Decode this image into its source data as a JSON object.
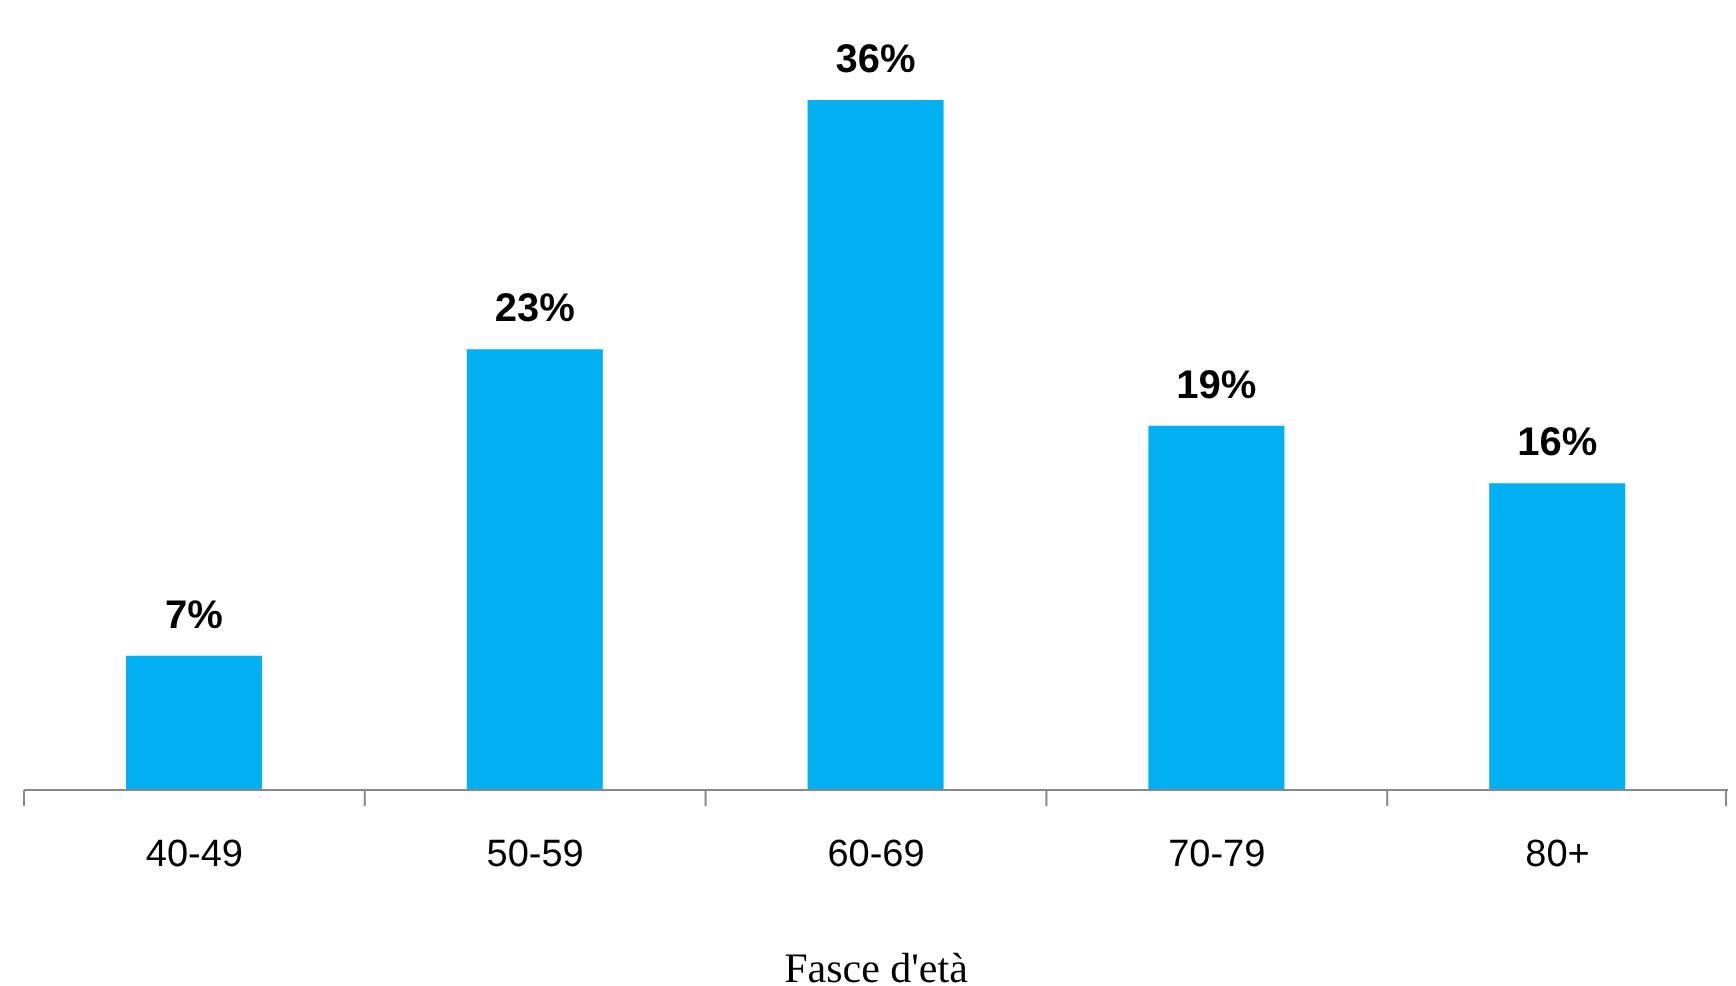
{
  "chart_data": {
    "type": "bar",
    "xlabel": "Fasce d'età",
    "categories": [
      "40-49",
      "50-59",
      "60-69",
      "70-79",
      "80+"
    ],
    "values": [
      7,
      23,
      36,
      19,
      16
    ],
    "value_labels": [
      "7%",
      "23%",
      "36%",
      "19%",
      "16%"
    ],
    "color": "#00b0f0",
    "tick_labels": "x"
  }
}
